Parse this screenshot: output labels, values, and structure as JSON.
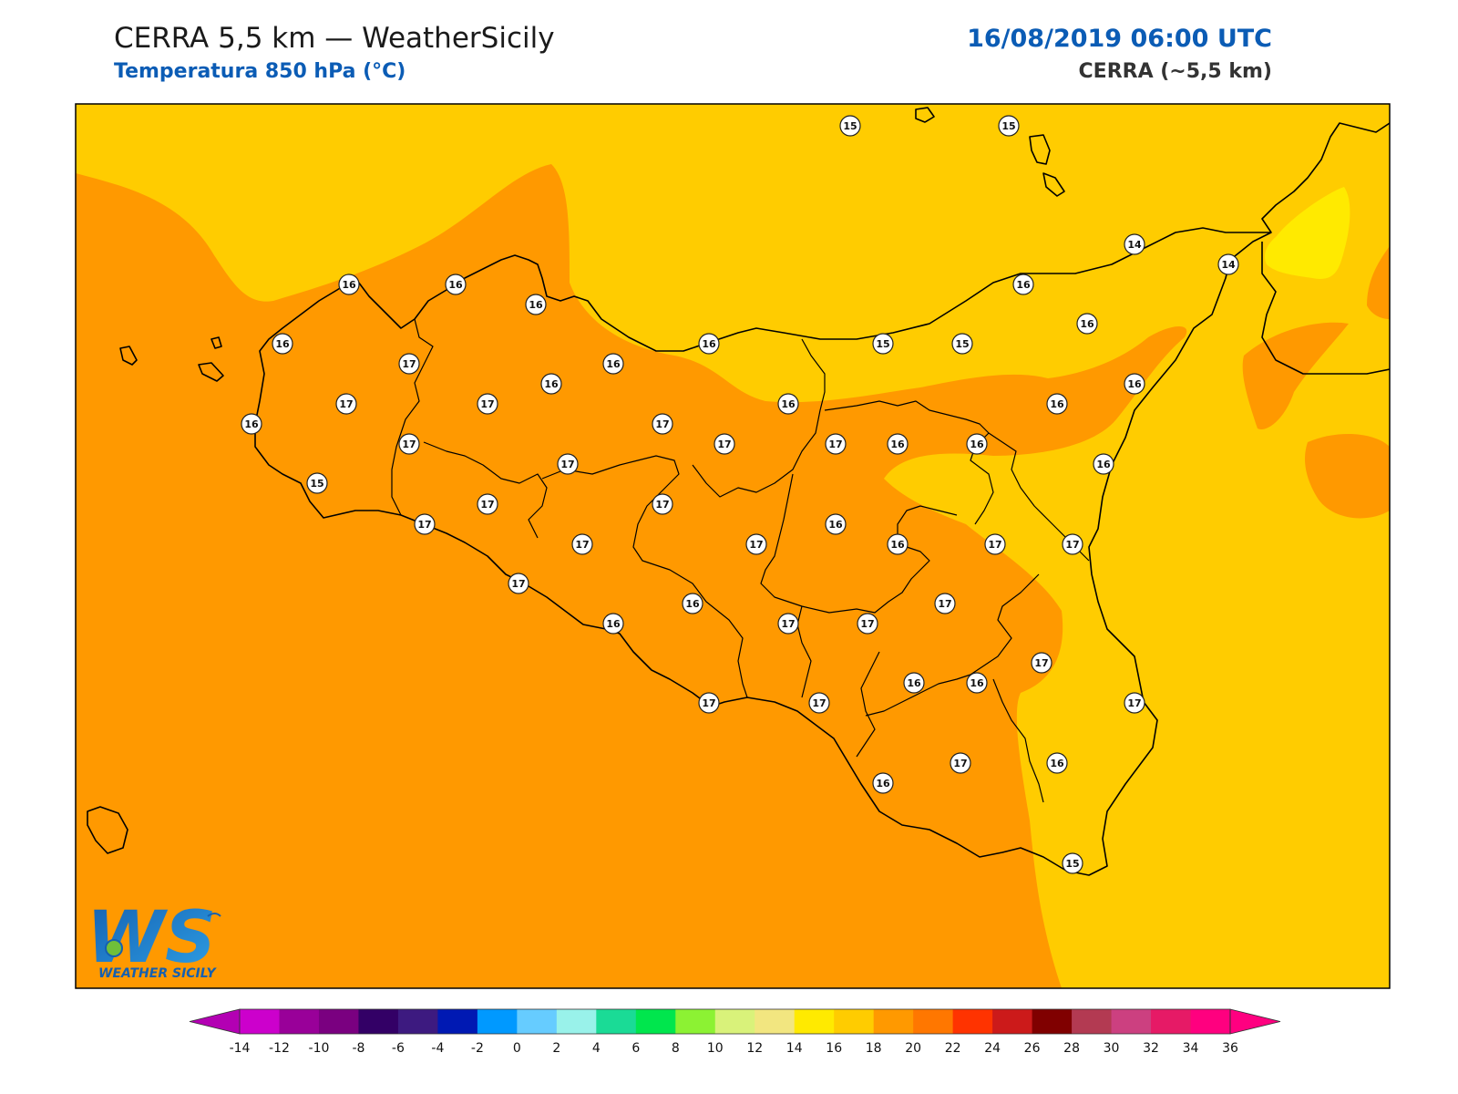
{
  "header": {
    "title": "CERRA 5,5 km — WeatherSicily",
    "subtitle": "Temperatura 850 hPa (°C)",
    "datetime": "16/08/2019 06:00 UTC",
    "model": "CERRA (~5,5 km)"
  },
  "logo": {
    "letters": "WS",
    "text": "WEATHER SICILY"
  },
  "colors": {
    "band_16_18": "#ff9900",
    "band_14_16": "#ffcc00",
    "band_12_14": "#ffea00",
    "coast": "#000000"
  },
  "colorbar": {
    "ticks": [
      "-14",
      "-12",
      "-10",
      "-8",
      "-6",
      "-4",
      "-2",
      "0",
      "2",
      "4",
      "6",
      "8",
      "10",
      "12",
      "14",
      "16",
      "18",
      "20",
      "22",
      "24",
      "26",
      "28",
      "30",
      "32",
      "34",
      "36"
    ],
    "colors": [
      "#cc00cc",
      "#990099",
      "#7a0080",
      "#330066",
      "#3d1a80",
      "#0019b3",
      "#0099ff",
      "#66ccff",
      "#99f2ea",
      "#1adb96",
      "#00e64d",
      "#8cf233",
      "#d9f27a",
      "#f2e680",
      "#ffea00",
      "#ffcc00",
      "#ff9900",
      "#ff7700",
      "#ff3300",
      "#cc1a1a",
      "#800000",
      "#b33a52",
      "#cc4080",
      "#e61a66",
      "#ff007f"
    ],
    "under_color": "#b300b3",
    "over_color": "#ff0080"
  },
  "station_values": [
    "15",
    "15",
    "14",
    "14",
    "16",
    "16",
    "16",
    "16",
    "16",
    "15",
    "15",
    "15",
    "16",
    "16",
    "17",
    "17",
    "17",
    "16",
    "16",
    "16",
    "17",
    "17",
    "17",
    "17",
    "16",
    "16",
    "16",
    "17",
    "16",
    "17",
    "16",
    "17",
    "17",
    "17",
    "17",
    "16",
    "16",
    "16",
    "17",
    "17",
    "17",
    "17",
    "16",
    "16",
    "17",
    "17",
    "17",
    "16",
    "16",
    "17",
    "17",
    "17",
    "16",
    "15",
    "17",
    "16"
  ]
}
